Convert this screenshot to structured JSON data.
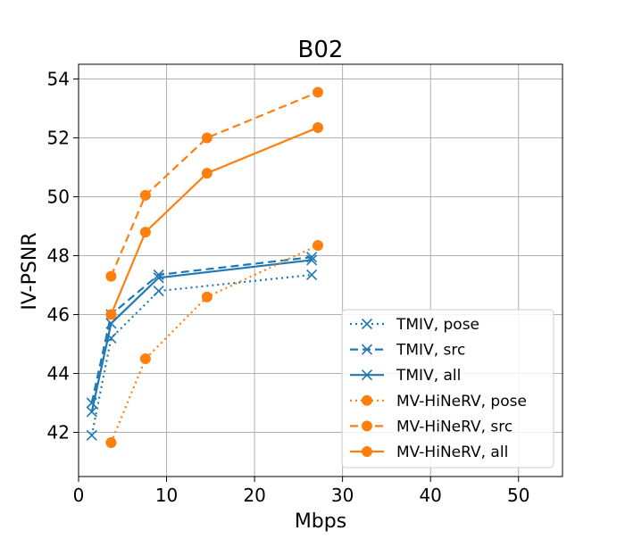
{
  "chart_data": {
    "type": "line",
    "title": "B02",
    "xlabel": "Mbps",
    "ylabel": "IV-PSNR",
    "xlim": [
      0,
      55
    ],
    "ylim": [
      40.5,
      54.5
    ],
    "xticks": [
      0,
      10,
      20,
      30,
      40,
      50
    ],
    "yticks": [
      42,
      44,
      46,
      48,
      50,
      52,
      54
    ],
    "grid": true,
    "legend_position": "lower-right",
    "colors": {
      "tmiv": "#1f77b4",
      "mvhinerv": "#ff7f0e",
      "grid": "#b0b0b0"
    },
    "series": [
      {
        "name": "TMIV, pose",
        "family": "tmiv",
        "style": "dotted",
        "marker": "x",
        "x": [
          1.5,
          3.7,
          9.1,
          26.5
        ],
        "y": [
          41.9,
          45.2,
          46.8,
          47.35
        ]
      },
      {
        "name": "TMIV, src",
        "family": "tmiv",
        "style": "dashed",
        "marker": "x",
        "x": [
          1.5,
          3.7,
          9.1,
          26.5
        ],
        "y": [
          43.0,
          46.0,
          47.35,
          47.95
        ]
      },
      {
        "name": "TMIV, all",
        "family": "tmiv",
        "style": "solid",
        "marker": "x",
        "x": [
          1.5,
          3.7,
          9.1,
          26.5
        ],
        "y": [
          42.7,
          45.7,
          47.25,
          47.85
        ]
      },
      {
        "name": "MV-HiNeRV, pose",
        "family": "mvhinerv",
        "style": "dotted",
        "marker": "o",
        "x": [
          3.7,
          7.6,
          14.6,
          27.2
        ],
        "y": [
          41.65,
          44.5,
          46.6,
          48.35
        ]
      },
      {
        "name": "MV-HiNeRV, src",
        "family": "mvhinerv",
        "style": "dashed",
        "marker": "o",
        "x": [
          3.7,
          7.6,
          14.6,
          27.2
        ],
        "y": [
          47.3,
          50.05,
          52.0,
          53.55
        ]
      },
      {
        "name": "MV-HiNeRV, all",
        "family": "mvhinerv",
        "style": "solid",
        "marker": "o",
        "x": [
          3.7,
          7.6,
          14.6,
          27.2
        ],
        "y": [
          46.0,
          48.8,
          50.8,
          52.35
        ]
      }
    ]
  }
}
